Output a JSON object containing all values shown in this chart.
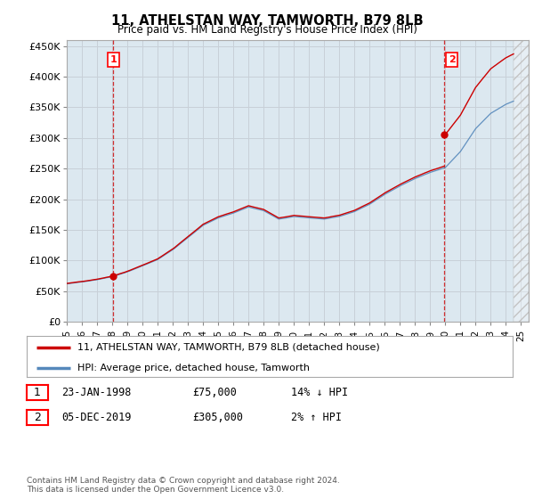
{
  "title": "11, ATHELSTAN WAY, TAMWORTH, B79 8LB",
  "subtitle": "Price paid vs. HM Land Registry's House Price Index (HPI)",
  "ytick_values": [
    0,
    50000,
    100000,
    150000,
    200000,
    250000,
    300000,
    350000,
    400000,
    450000
  ],
  "ylim": [
    0,
    460000
  ],
  "xlim_start": 1995.33,
  "xlim_end": 2025.5,
  "line1_color": "#cc0000",
  "line2_color": "#5588bb",
  "vline_color": "#cc0000",
  "grid_color": "#c8d0d8",
  "bg_color": "#dce8f0",
  "plot_bg": "#dce8f0",
  "sale1_x": 1998.07,
  "sale1_y": 75000,
  "sale2_x": 2019.92,
  "sale2_y": 305000,
  "legend_label1": "11, ATHELSTAN WAY, TAMWORTH, B79 8LB (detached house)",
  "legend_label2": "HPI: Average price, detached house, Tamworth",
  "table_row1_num": "1",
  "table_row1_date": "23-JAN-1998",
  "table_row1_price": "£75,000",
  "table_row1_hpi": "14% ↓ HPI",
  "table_row2_num": "2",
  "table_row2_date": "05-DEC-2019",
  "table_row2_price": "£305,000",
  "table_row2_hpi": "2% ↑ HPI",
  "footer": "Contains HM Land Registry data © Crown copyright and database right 2024.\nThis data is licensed under the Open Government Licence v3.0.",
  "xtick_years": [
    1995,
    1996,
    1997,
    1998,
    1999,
    2000,
    2001,
    2002,
    2003,
    2004,
    2005,
    2006,
    2007,
    2008,
    2009,
    2010,
    2011,
    2012,
    2013,
    2014,
    2015,
    2016,
    2017,
    2018,
    2019,
    2020,
    2021,
    2022,
    2023,
    2024,
    2025
  ]
}
